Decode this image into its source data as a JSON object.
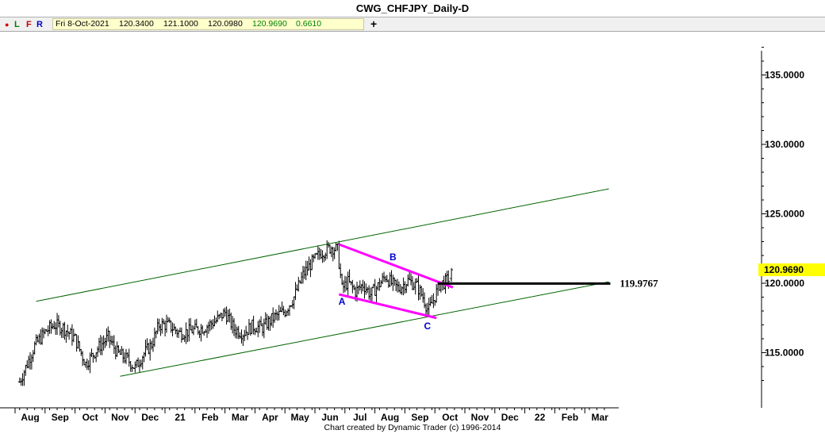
{
  "window": {
    "title": "CWG_CHFJPY_Daily-D"
  },
  "toolbar": {
    "buttons": [
      "L",
      "F",
      "R"
    ],
    "ohlc": {
      "date": "Fri 8-Oct-2021",
      "open": "120.3400",
      "high": "121.1000",
      "low": "120.0980",
      "close": "120.9690",
      "change": "0.6610"
    },
    "add_label": "+"
  },
  "footer": {
    "credit": "Chart created by Dynamic Trader  (c) 1996-2014"
  },
  "colors": {
    "price_bars": "#000000",
    "channel": "#006400",
    "wedge": "#ff00ff",
    "abc_labels": "#0000cc",
    "current_price_box": "#ffff00"
  },
  "chart_data": {
    "type": "ohlc-bar",
    "title": "CWG_CHFJPY_Daily-D",
    "ylim": [
      111.0,
      137.5
    ],
    "y_ticks": [
      {
        "value": 135.0,
        "label": "135.0000"
      },
      {
        "value": 130.0,
        "label": "130.0000"
      },
      {
        "value": 125.0,
        "label": "125.0000"
      },
      {
        "value": 120.0,
        "label": "120.0000"
      },
      {
        "value": 115.0,
        "label": "115.0000"
      }
    ],
    "x_range_months": [
      -0.35,
      19.2
    ],
    "x_ticks": [
      {
        "month": 0,
        "label": "Aug"
      },
      {
        "month": 1,
        "label": "Sep"
      },
      {
        "month": 2,
        "label": "Oct"
      },
      {
        "month": 3,
        "label": "Nov"
      },
      {
        "month": 4,
        "label": "Dec"
      },
      {
        "month": 5,
        "label": "21"
      },
      {
        "month": 6,
        "label": "Feb"
      },
      {
        "month": 7,
        "label": "Mar"
      },
      {
        "month": 8,
        "label": "Apr"
      },
      {
        "month": 9,
        "label": "May"
      },
      {
        "month": 10,
        "label": "Jun"
      },
      {
        "month": 11,
        "label": "Jul"
      },
      {
        "month": 12,
        "label": "Aug"
      },
      {
        "month": 13,
        "label": "Sep"
      },
      {
        "month": 14,
        "label": "Oct"
      },
      {
        "month": 15,
        "label": "Nov"
      },
      {
        "month": 16,
        "label": "Dec"
      },
      {
        "month": 17,
        "label": "22"
      },
      {
        "month": 18,
        "label": "Feb"
      },
      {
        "month": 19,
        "label": "Mar"
      }
    ],
    "price_path": [
      [
        -0.35,
        112.9
      ],
      [
        0.15,
        115.5
      ],
      [
        0.5,
        116.5
      ],
      [
        0.8,
        117.0
      ],
      [
        1.1,
        116.8
      ],
      [
        1.5,
        116.0
      ],
      [
        1.85,
        114.2
      ],
      [
        2.25,
        115.3
      ],
      [
        2.6,
        116.1
      ],
      [
        2.9,
        115.0
      ],
      [
        3.25,
        114.5
      ],
      [
        3.5,
        113.9
      ],
      [
        3.75,
        114.8
      ],
      [
        4.05,
        115.6
      ],
      [
        4.3,
        117.0
      ],
      [
        4.6,
        117.0
      ],
      [
        5.0,
        116.4
      ],
      [
        5.4,
        116.6
      ],
      [
        5.8,
        116.8
      ],
      [
        6.2,
        117.3
      ],
      [
        6.5,
        117.9
      ],
      [
        6.8,
        116.7
      ],
      [
        7.1,
        116.4
      ],
      [
        7.4,
        116.9
      ],
      [
        7.75,
        116.8
      ],
      [
        8.1,
        117.5
      ],
      [
        8.5,
        118.0
      ],
      [
        8.8,
        119.0
      ],
      [
        9.1,
        120.6
      ],
      [
        9.4,
        121.5
      ],
      [
        9.7,
        122.2
      ],
      [
        10.05,
        122.6
      ],
      [
        10.25,
        122.4
      ],
      [
        10.4,
        119.6
      ],
      [
        10.6,
        120.1
      ],
      [
        10.85,
        119.4
      ],
      [
        11.1,
        119.9
      ],
      [
        11.35,
        119.2
      ],
      [
        11.6,
        119.8
      ],
      [
        11.85,
        120.5
      ],
      [
        12.05,
        120.0
      ],
      [
        12.3,
        119.6
      ],
      [
        12.6,
        120.2
      ],
      [
        12.9,
        119.8
      ],
      [
        13.1,
        119.0
      ],
      [
        13.28,
        118.0
      ],
      [
        13.45,
        118.8
      ],
      [
        13.65,
        119.9
      ],
      [
        13.85,
        120.1
      ],
      [
        14.0,
        120.5
      ]
    ],
    "last_bar": {
      "date": "Fri 8-Oct-2021",
      "open": 120.34,
      "high": 121.1,
      "low": 120.098,
      "close": 120.969,
      "month": 14.05
    },
    "current_price": {
      "label": "120.9690",
      "value": 120.969
    },
    "annotations": {
      "channel_upper": [
        [
          0.2,
          118.7
        ],
        [
          19.3,
          126.8
        ]
      ],
      "channel_lower": [
        [
          3.0,
          113.3
        ],
        [
          19.3,
          120.1
        ]
      ],
      "wedge_upper": [
        [
          10.3,
          122.8
        ],
        [
          14.1,
          119.7
        ]
      ],
      "wedge_lower": [
        [
          10.3,
          119.2
        ],
        [
          13.55,
          117.5
        ]
      ],
      "level_line": {
        "value": 119.9767,
        "label": "119.9767",
        "from_month": 13.6,
        "to_month": 19.35
      },
      "labels": [
        {
          "text": "A",
          "month": 10.4,
          "value": 118.45
        },
        {
          "text": "B",
          "month": 12.1,
          "value": 121.65
        },
        {
          "text": "C",
          "month": 13.25,
          "value": 116.7
        }
      ]
    }
  }
}
